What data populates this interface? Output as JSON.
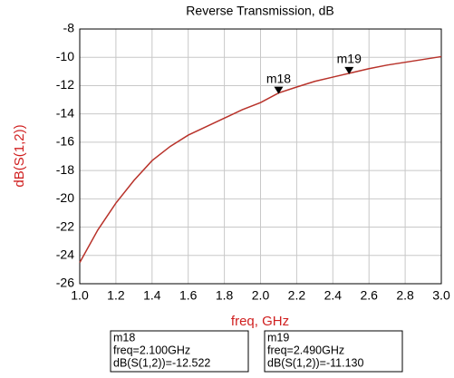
{
  "chart_data": {
    "type": "line",
    "title": "Reverse Transmission, dB",
    "x_label": "freq, GHz",
    "y_label": "dB(S(1,2))",
    "x": [
      1.0,
      1.1,
      1.2,
      1.3,
      1.4,
      1.5,
      1.6,
      1.7,
      1.8,
      1.9,
      2.0,
      2.1,
      2.2,
      2.3,
      2.4,
      2.49,
      2.6,
      2.7,
      2.8,
      2.9,
      3.0
    ],
    "series": [
      {
        "color": "#b8322a",
        "values": [
          -24.5,
          -22.2,
          -20.3,
          -18.7,
          -17.3,
          -16.3,
          -15.5,
          -14.9,
          -14.3,
          -13.7,
          -13.2,
          -12.522,
          -12.1,
          -11.7,
          -11.4,
          -11.13,
          -10.8,
          -10.55,
          -10.35,
          -10.15,
          -9.95
        ]
      }
    ],
    "xlim": [
      1.0,
      3.0
    ],
    "xticks": [
      {
        "value": 1.0,
        "label": "1.0"
      },
      {
        "value": 1.2,
        "label": "1.2"
      },
      {
        "value": 1.4,
        "label": "1.4"
      },
      {
        "value": 1.6,
        "label": "1.6"
      },
      {
        "value": 1.8,
        "label": "1.8"
      },
      {
        "value": 2.0,
        "label": "2.0"
      },
      {
        "value": 2.2,
        "label": "2.2"
      },
      {
        "value": 2.4,
        "label": "2.4"
      },
      {
        "value": 2.6,
        "label": "2.6"
      },
      {
        "value": 2.8,
        "label": "2.8"
      },
      {
        "value": 3.0,
        "label": "3.0"
      }
    ],
    "ylim": [
      -26,
      -8
    ],
    "yticks": [
      -26,
      -24,
      -22,
      -20,
      -18,
      -16,
      -14,
      -12,
      -10,
      -8
    ],
    "grid": true,
    "markers": [
      {
        "name": "m18",
        "x": 2.1,
        "y": -12.522,
        "freq_label": "freq=2.100GHz",
        "value_label": "dB(S(1,2))=-12.522"
      },
      {
        "name": "m19",
        "x": 2.49,
        "y": -11.13,
        "freq_label": "freq=2.490GHz",
        "value_label": "dB(S(1,2))=-11.130"
      }
    ]
  }
}
